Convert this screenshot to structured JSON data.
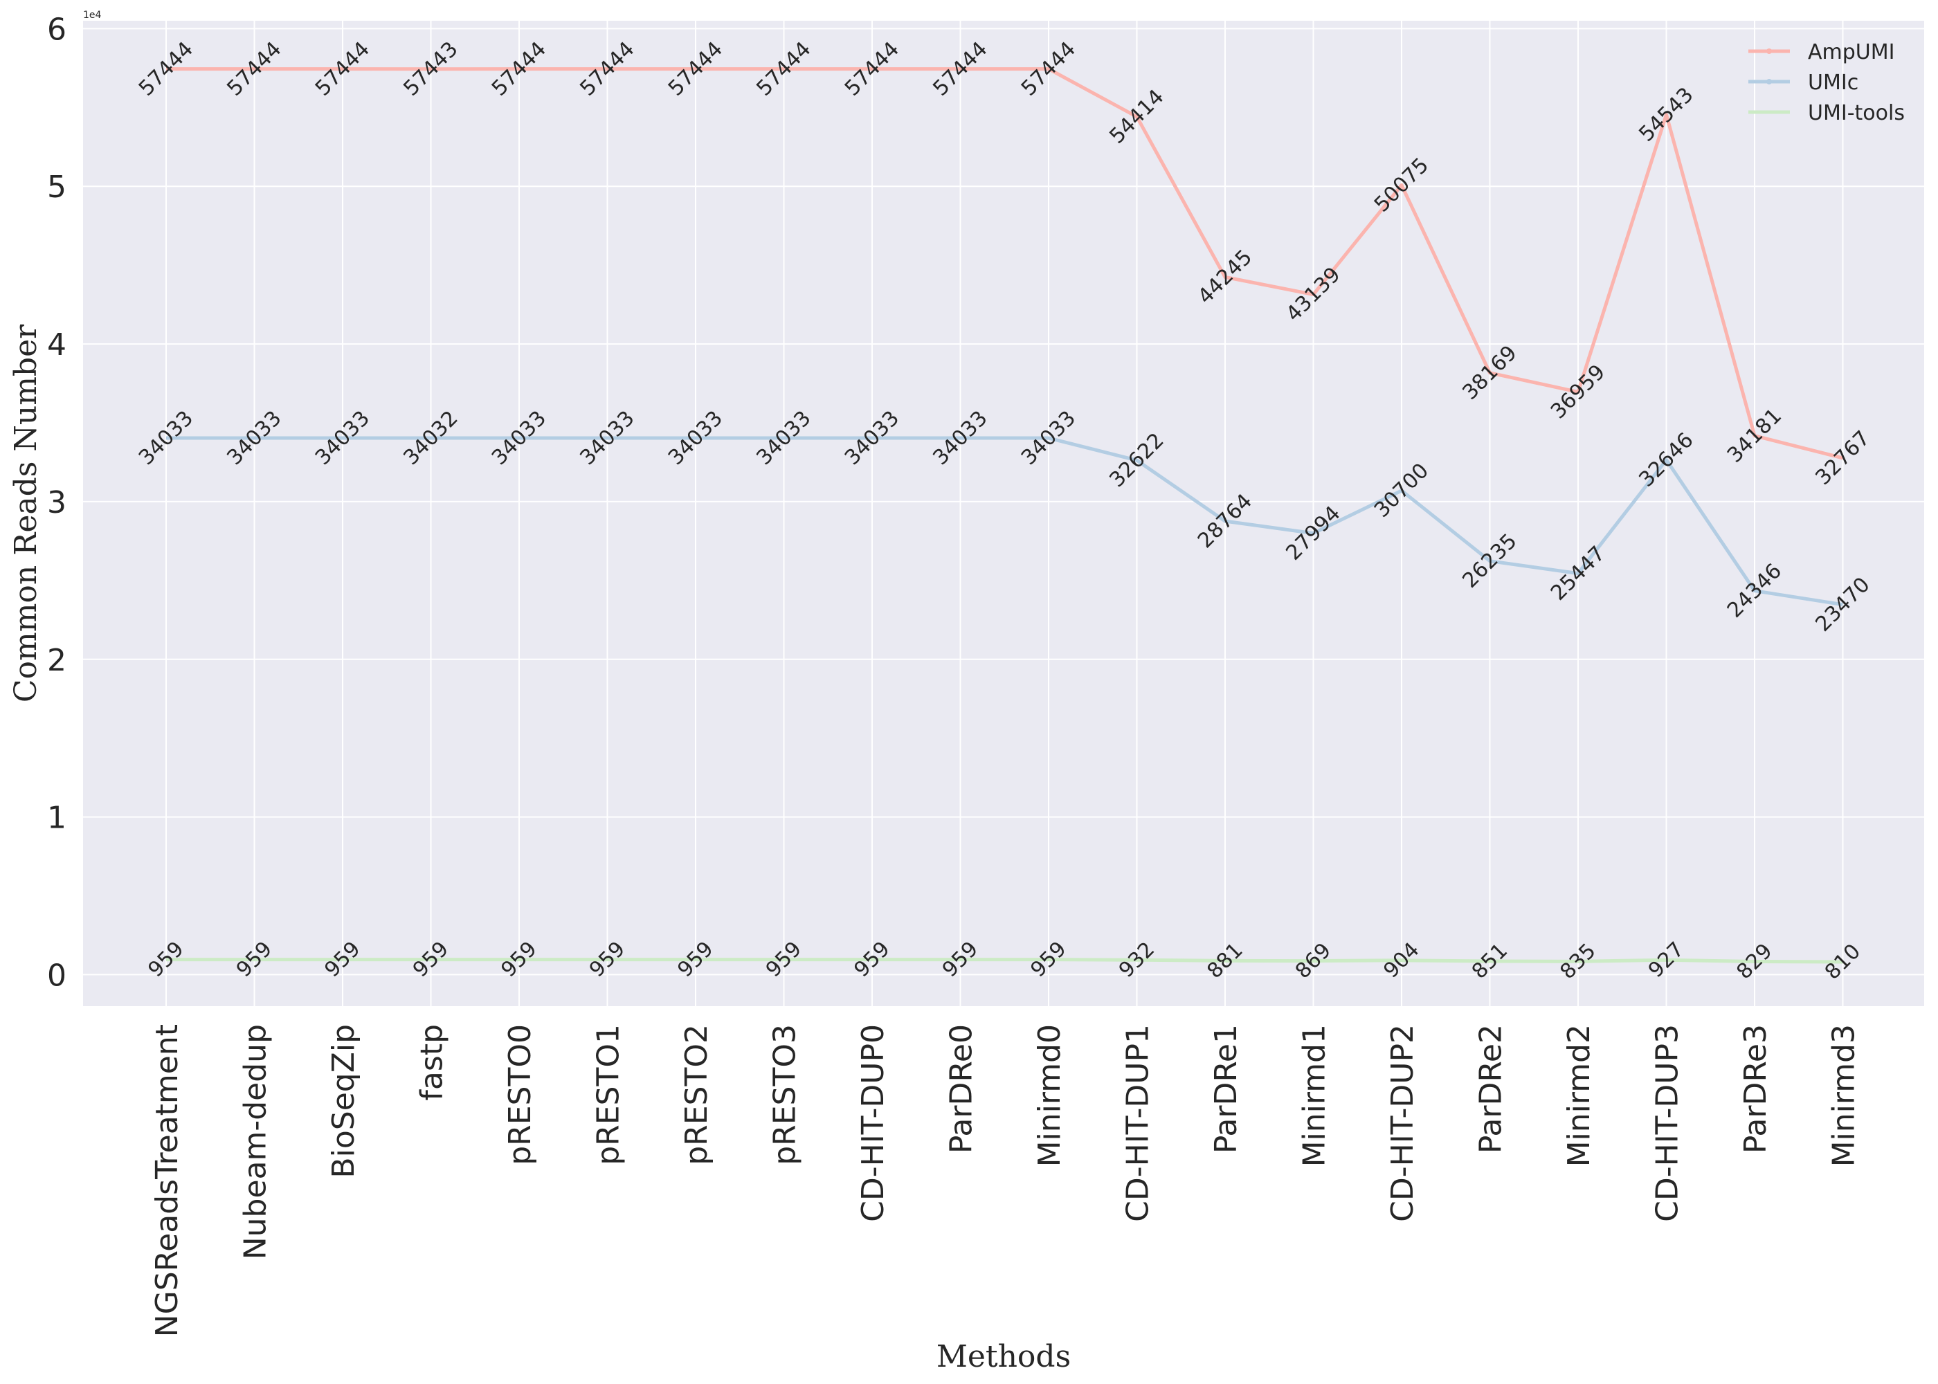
{
  "chart_data": {
    "type": "line",
    "xlabel": "Methods",
    "ylabel": "Common Reads Number",
    "y_offset_label": "1e4",
    "ylim": [
      -2000,
      60500
    ],
    "yticks": [
      0,
      10000,
      20000,
      30000,
      40000,
      50000,
      60000
    ],
    "ytick_labels": [
      "0",
      "1",
      "2",
      "3",
      "4",
      "5",
      "6"
    ],
    "grid": true,
    "legend_position": "top-right",
    "background": "#eaeaf2",
    "categories": [
      "NGSReadsTreatment",
      "Nubeam-dedup",
      "BioSeqZip",
      "fastp",
      "pRESTO0",
      "pRESTO1",
      "pRESTO2",
      "pRESTO3",
      "CD-HIT-DUP0",
      "ParDRe0",
      "Minirmd0",
      "CD-HIT-DUP1",
      "ParDRe1",
      "Minirmd1",
      "CD-HIT-DUP2",
      "ParDRe2",
      "Minirmd2",
      "CD-HIT-DUP3",
      "ParDRe3",
      "Minirmd3"
    ],
    "series": [
      {
        "name": "AmpUMI",
        "color": "#fbb4ae",
        "values": [
          57444,
          57444,
          57444,
          57443,
          57444,
          57444,
          57444,
          57444,
          57444,
          57444,
          57444,
          54414,
          44245,
          43139,
          50075,
          38169,
          36959,
          54543,
          34181,
          32767
        ]
      },
      {
        "name": "UMIc",
        "color": "#b3cde3",
        "values": [
          34033,
          34033,
          34033,
          34032,
          34033,
          34033,
          34033,
          34033,
          34033,
          34033,
          34033,
          32622,
          28764,
          27994,
          30700,
          26235,
          25447,
          32646,
          24346,
          23470
        ]
      },
      {
        "name": "UMI-tools",
        "color": "#ccebc5",
        "values": [
          959,
          959,
          959,
          959,
          959,
          959,
          959,
          959,
          959,
          959,
          959,
          932,
          881,
          869,
          904,
          851,
          835,
          927,
          829,
          810
        ]
      }
    ]
  }
}
